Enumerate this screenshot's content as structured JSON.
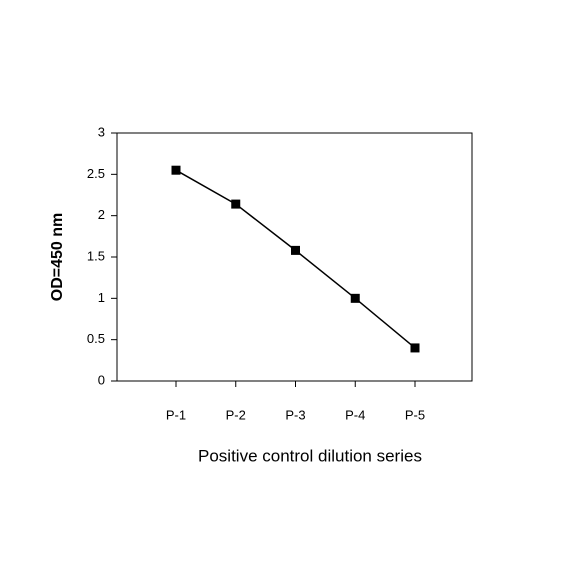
{
  "chart_data": {
    "type": "line",
    "x_label": "Positive control dilution series",
    "y_label": "OD=450 nm",
    "categories": [
      "P-1",
      "P-2",
      "P-3",
      "P-4",
      "P-5"
    ],
    "values": [
      2.55,
      2.14,
      1.58,
      1.0,
      0.4
    ],
    "color": "#000000",
    "ylim": [
      0,
      3
    ],
    "yticks": [
      0,
      0.5,
      1,
      1.5,
      2,
      2.5,
      3
    ],
    "grid": false
  }
}
